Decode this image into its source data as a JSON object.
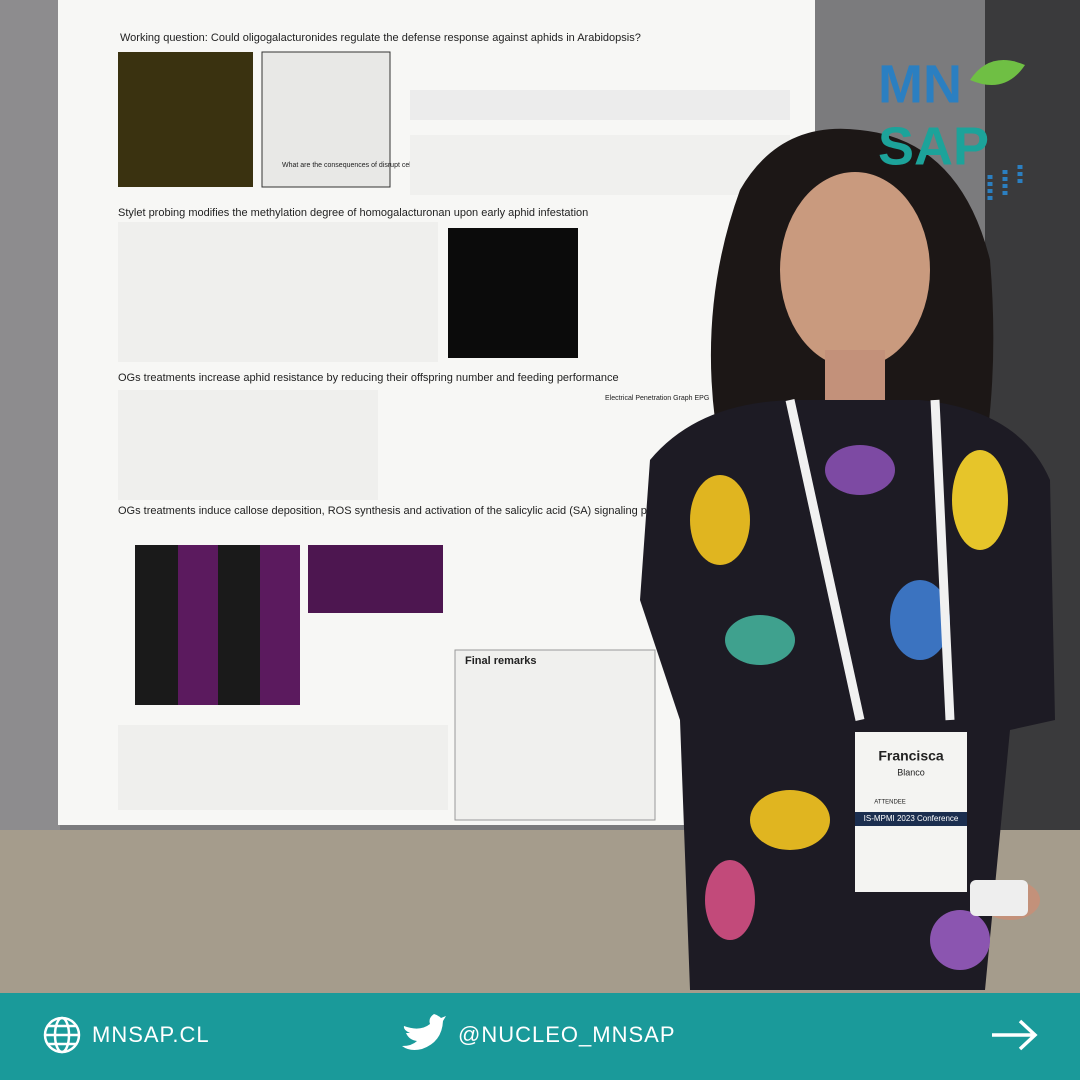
{
  "logo": {
    "line1": "MN",
    "line2": "SAP"
  },
  "poster": {
    "sections": [
      "Working question: Could oligogalacturonides regulate the defense response against aphids in Arabidopsis?",
      "Stylet probing modifies the methylation degree of homogalacturonan upon early aphid infestation",
      "OGs treatments increase aphid resistance by reducing their offspring number and feeding performance",
      "OGs treatments induce callose deposition, ROS synthesis and activation of the salicylic acid (SA) signaling pathway"
    ],
    "final_remarks": "Final remarks",
    "side_title": "Electrical Penetration Graph EPG",
    "question": "What are the consequences of disrupt cell walls?"
  },
  "badge": {
    "name": "Francisca",
    "surname": "Blanco",
    "role": "ATTENDEE",
    "event": "IS-MPMI 2023 Conference"
  },
  "footer": {
    "website": "MNSAP.CL",
    "twitter": "@NUCLEO_MNSAP"
  }
}
